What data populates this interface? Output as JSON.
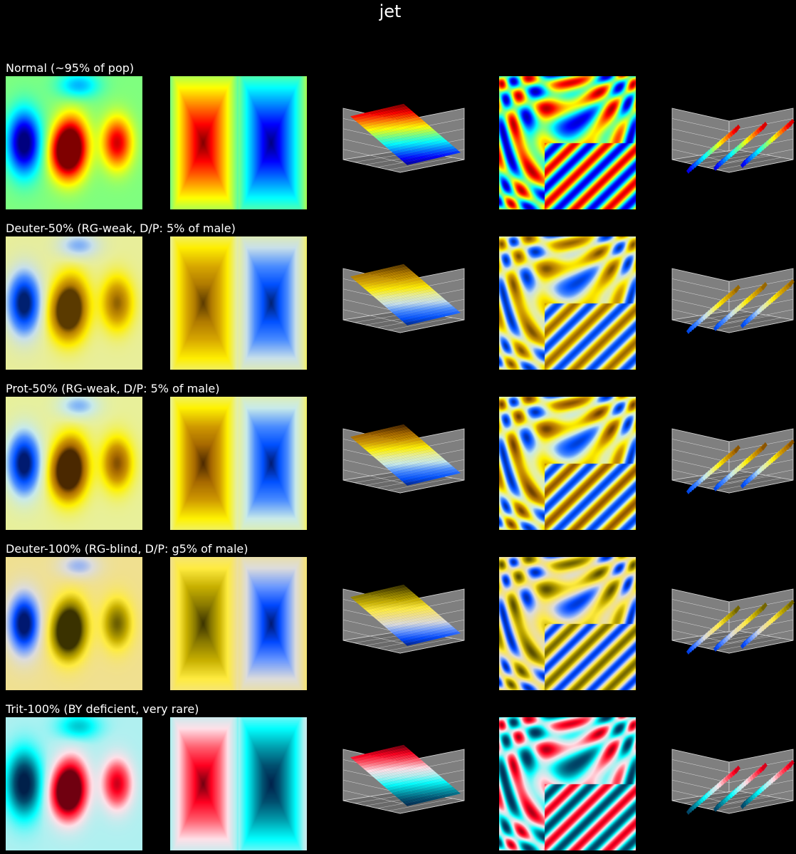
{
  "figure": {
    "title": "jet"
  },
  "colors": {
    "background": "#000000",
    "text": "#ffffff",
    "axes_pane": "#7f7f7f",
    "axes_grid": "#d8d8d8"
  },
  "rows": [
    {
      "label": "Normal (~95% of pop)",
      "variant": "normal"
    },
    {
      "label": "Deuter-50% (RG-weak, D/P: 5% of male)",
      "variant": "deuter50"
    },
    {
      "label": "Prot-50% (RG-weak, D/P: 5% of male)",
      "variant": "prot50"
    },
    {
      "label": "Deuter-100% (RG-blind, D/P: g5% of male)",
      "variant": "deuter100"
    },
    {
      "label": "Trit-100% (BY deficient, very rare)",
      "variant": "trit100"
    }
  ],
  "columns": [
    "blob-image",
    "pyramid-image",
    "surface-3d",
    "ripple-image",
    "wave-surface-3d"
  ],
  "colormaps": {
    "normal": [
      "#00007f",
      "#0000ff",
      "#007fff",
      "#00ffff",
      "#7fff7f",
      "#ffff00",
      "#ff7f00",
      "#ff0000",
      "#7f0000"
    ],
    "deuter50": [
      "#002070",
      "#0050ff",
      "#4a8cff",
      "#c8e0ea",
      "#e8ee9a",
      "#ffee00",
      "#d8a800",
      "#b07a00",
      "#5a3a00"
    ],
    "prot50": [
      "#001a70",
      "#0050ff",
      "#4a8cff",
      "#c8eaea",
      "#e8f09a",
      "#fff200",
      "#d09a00",
      "#a66800",
      "#4a2800"
    ],
    "deuter100": [
      "#001870",
      "#0048ff",
      "#6a98ff",
      "#dcdcdc",
      "#f0e090",
      "#ffec40",
      "#c8b000",
      "#8a7a00",
      "#3a3200"
    ],
    "trit100": [
      "#00204a",
      "#005070",
      "#00a0b0",
      "#00ffff",
      "#b0f0f0",
      "#ffe0e8",
      "#ff6070",
      "#ff0020",
      "#700010"
    ]
  },
  "chart_data": [
    {
      "type": "heatmap",
      "panel": "blob-image",
      "description_source": "matplotlib imshow demo, 5 rows of simulated color vision"
    },
    {
      "type": "heatmap",
      "panel": "pyramid-image"
    },
    {
      "type": "surface",
      "panel": "surface-3d"
    },
    {
      "type": "heatmap",
      "panel": "ripple-image"
    },
    {
      "type": "surface",
      "panel": "wave-surface-3d"
    }
  ]
}
